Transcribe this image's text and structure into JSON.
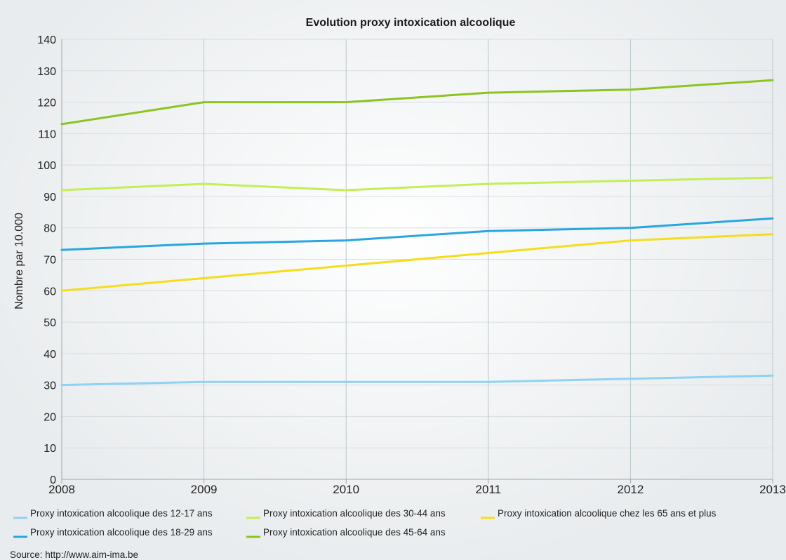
{
  "chart_data": {
    "type": "line",
    "title": "Evolution proxy intoxication alcoolique",
    "xlabel": "",
    "ylabel": "Nombre par 10.000",
    "x": [
      "2008",
      "2009",
      "2010",
      "2011",
      "2012",
      "2013"
    ],
    "ylim": [
      0,
      140
    ],
    "yticks": [
      0,
      10,
      20,
      30,
      40,
      50,
      60,
      70,
      80,
      90,
      100,
      110,
      120,
      130,
      140
    ],
    "grid": true,
    "legend_position": "bottom",
    "series": [
      {
        "name": "Proxy intoxication alcoolique des 12-17 ans",
        "color": "#8fd2f3",
        "values": [
          30,
          31,
          31,
          31,
          32,
          33
        ]
      },
      {
        "name": "Proxy intoxication alcoolique des 30-44 ans",
        "color": "#c3ef55",
        "values": [
          92,
          94,
          92,
          94,
          95,
          96
        ]
      },
      {
        "name": "Proxy intoxication alcoolique chez les 65 ans et plus",
        "color": "#f5dd1a",
        "values": [
          60,
          64,
          68,
          72,
          76,
          78
        ]
      },
      {
        "name": "Proxy intoxication alcoolique des 18-29 ans",
        "color": "#27a6e2",
        "values": [
          73,
          75,
          76,
          79,
          80,
          83
        ]
      },
      {
        "name": "Proxy intoxication alcoolique des 45-64 ans",
        "color": "#8cc41f",
        "values": [
          113,
          120,
          120,
          123,
          124,
          127
        ]
      }
    ]
  },
  "source": "Source: http://www.aim-ima.be"
}
